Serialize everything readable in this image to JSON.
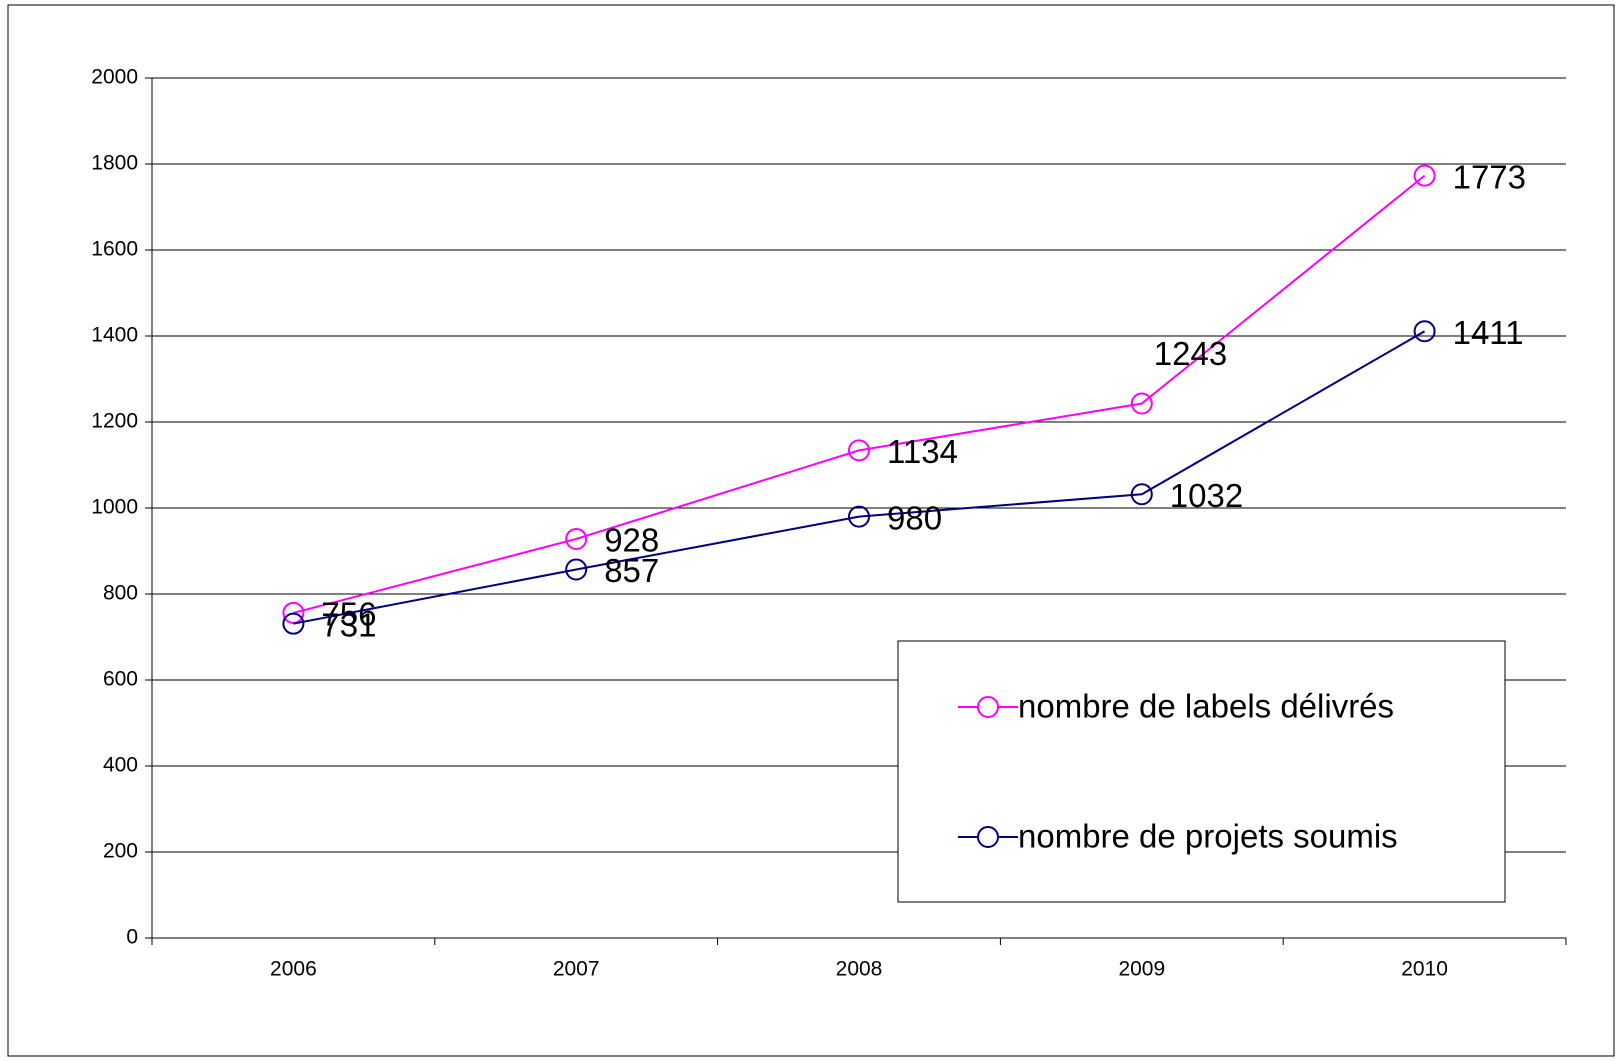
{
  "chart_data": {
    "type": "line",
    "categories": [
      "2006",
      "2007",
      "2008",
      "2009",
      "2010"
    ],
    "series": [
      {
        "name": "nombre de labels délivrés",
        "color": "#ff00ff",
        "values": [
          756,
          928,
          1134,
          1243,
          1773
        ]
      },
      {
        "name": "nombre de projets soumis",
        "color": "#000080",
        "values": [
          731,
          857,
          980,
          1032,
          1411
        ]
      }
    ],
    "ylim": [
      0,
      2000
    ],
    "yticks": [
      0,
      200,
      400,
      600,
      800,
      1000,
      1200,
      1400,
      1600,
      1800,
      2000
    ],
    "grid": true,
    "legend": "lower right"
  }
}
